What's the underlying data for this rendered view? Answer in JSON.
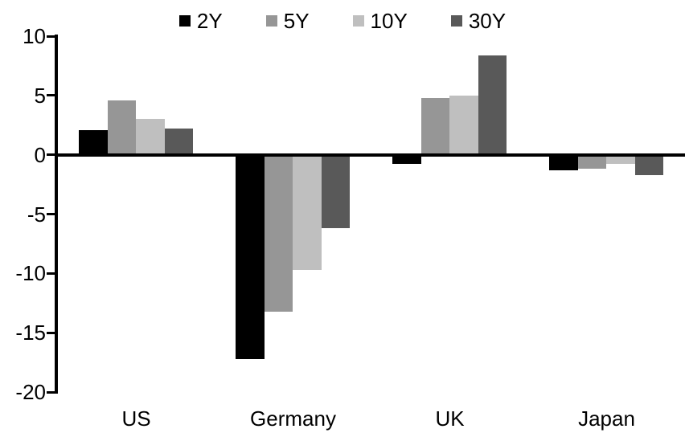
{
  "chart_data": {
    "type": "bar",
    "title": "",
    "xlabel": "",
    "ylabel": "",
    "categories": [
      "US",
      "Germany",
      "UK",
      "Japan"
    ],
    "series": [
      {
        "name": "2Y",
        "color": "#000000",
        "values": [
          2.1,
          -17.2,
          -0.8,
          -1.3
        ]
      },
      {
        "name": "5Y",
        "color": "#969696",
        "values": [
          4.6,
          -13.2,
          4.8,
          -1.2
        ]
      },
      {
        "name": "10Y",
        "color": "#bfbfbf",
        "values": [
          3.0,
          -9.7,
          5.0,
          -0.8
        ]
      },
      {
        "name": "30Y",
        "color": "#595959",
        "values": [
          2.2,
          -6.2,
          8.4,
          -1.7
        ]
      }
    ],
    "ylim": [
      -20,
      10
    ],
    "yticks": [
      10,
      5,
      0,
      -5,
      -10,
      -15,
      -20
    ],
    "grid": false,
    "legend_position": "top",
    "axis_color": "#000000",
    "background": "#ffffff"
  }
}
